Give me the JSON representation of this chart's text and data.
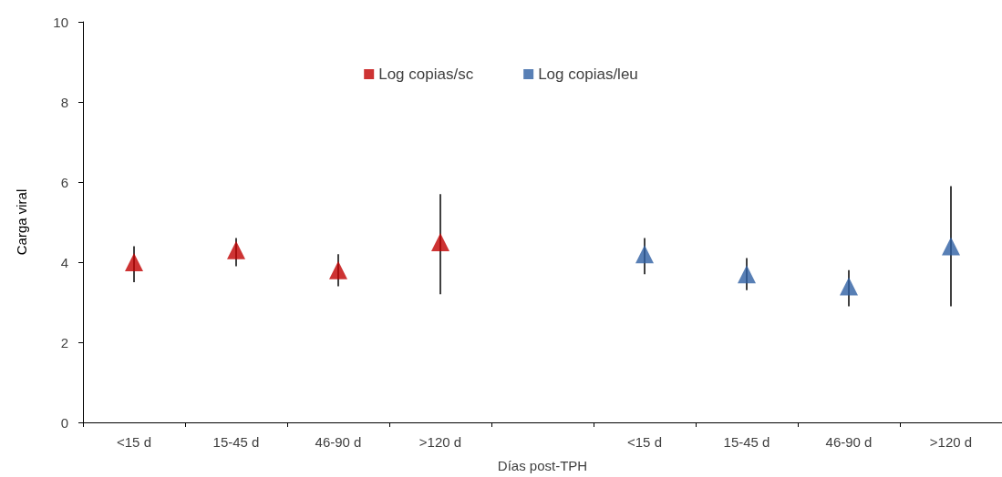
{
  "chart_data": {
    "type": "scatter",
    "xlabel": "Días post-TPH",
    "ylabel": "Carga viral",
    "categories": [
      "<15 d",
      "15-45 d",
      "46-90 d",
      ">120 d",
      null,
      "<15 d",
      "15-45 d",
      "46-90 d",
      ">120 d"
    ],
    "series": [
      {
        "name": "Log copias/sc",
        "color": "#c00000",
        "values": [
          4.0,
          4.3,
          3.8,
          4.5,
          null,
          null,
          null,
          null,
          null
        ],
        "errors": [
          [
            3.5,
            4.4
          ],
          [
            3.9,
            4.6
          ],
          [
            3.4,
            4.2
          ],
          [
            3.2,
            5.7
          ],
          null,
          null,
          null,
          null,
          null
        ]
      },
      {
        "name": "Log copias/leu",
        "color": "#2e5fa3",
        "values": [
          null,
          null,
          null,
          null,
          null,
          4.2,
          3.7,
          3.4,
          4.4
        ],
        "errors": [
          null,
          null,
          null,
          null,
          null,
          [
            3.7,
            4.6
          ],
          [
            3.3,
            4.1
          ],
          [
            2.9,
            3.8
          ],
          [
            2.9,
            5.9
          ]
        ]
      }
    ],
    "ylim": [
      0,
      10
    ],
    "yticks": [
      0,
      2,
      4,
      6,
      8,
      10
    ],
    "grid": false,
    "legend": "top",
    "marker": "triangle"
  }
}
